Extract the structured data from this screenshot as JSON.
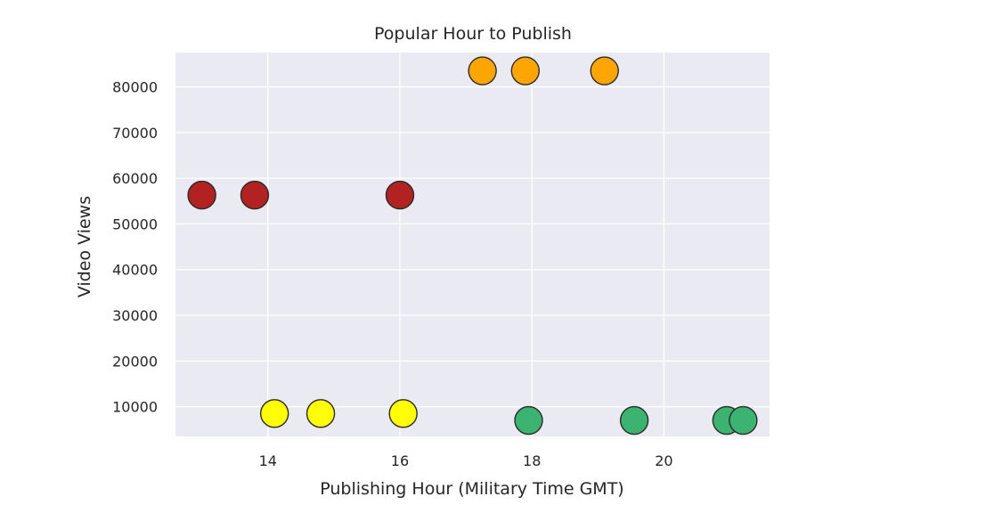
{
  "chart_data": {
    "type": "scatter",
    "title": "Popular Hour to Publish",
    "xlabel": "Publishing Hour (Military Time GMT)",
    "ylabel": "Video Views",
    "xlim": [
      12.6,
      21.6
    ],
    "ylim": [
      3500,
      87500
    ],
    "xticks": [
      14,
      16,
      18,
      20
    ],
    "yticks": [
      10000,
      20000,
      30000,
      40000,
      50000,
      60000,
      70000,
      80000
    ],
    "grid": true,
    "background": "#eaeaf2",
    "points": [
      {
        "x": 13.0,
        "y": 56300,
        "color": "#b22222"
      },
      {
        "x": 13.8,
        "y": 56300,
        "color": "#b22222"
      },
      {
        "x": 16.0,
        "y": 56300,
        "color": "#b22222"
      },
      {
        "x": 17.25,
        "y": 83500,
        "color": "#ffa500"
      },
      {
        "x": 17.9,
        "y": 83500,
        "color": "#ffa500"
      },
      {
        "x": 19.1,
        "y": 83500,
        "color": "#ffa500"
      },
      {
        "x": 14.1,
        "y": 8500,
        "color": "#ffff00"
      },
      {
        "x": 14.8,
        "y": 8500,
        "color": "#ffff00"
      },
      {
        "x": 16.05,
        "y": 8500,
        "color": "#ffff00"
      },
      {
        "x": 17.95,
        "y": 7000,
        "color": "#3cb371"
      },
      {
        "x": 19.55,
        "y": 7000,
        "color": "#3cb371"
      },
      {
        "x": 20.95,
        "y": 7000,
        "color": "#3cb371"
      },
      {
        "x": 21.2,
        "y": 7000,
        "color": "#3cb371"
      }
    ]
  }
}
